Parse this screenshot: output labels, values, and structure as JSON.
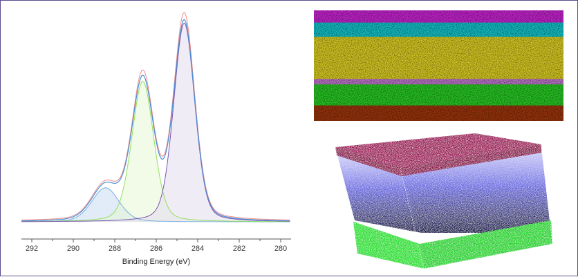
{
  "chart_data": {
    "type": "line",
    "xlabel": "Binding Energy (eV)",
    "xlim": [
      292.5,
      279.5
    ],
    "x_reversed": true,
    "ylim": [
      0,
      1.08
    ],
    "x_ticks": [
      292,
      290,
      288,
      286,
      284,
      282,
      280
    ],
    "y_tick_labels": false,
    "grid": false,
    "legend": "none",
    "baseline": 0.02,
    "components": [
      {
        "center": 288.45,
        "height": 0.17,
        "fwhm": 1.55,
        "color": "#7aaee0",
        "fill": "#c9dcf2"
      },
      {
        "center": 286.65,
        "height": 0.7,
        "fwhm": 1.25,
        "color": "#8fe05a",
        "fill": "#e6f7d6"
      },
      {
        "center": 284.65,
        "height": 0.99,
        "fwhm": 1.2,
        "color": "#7a55b0",
        "fill": "#e4dcef"
      }
    ],
    "envelope_color": "#4a90d6",
    "fit_color": "#f08a86"
  },
  "colors": {
    "frame": "#5b4a8f",
    "axis": "#555555"
  },
  "elemental_map": {
    "layers": [
      {
        "element_color": "#cc2bd6",
        "bg": "#8a1a90",
        "weight": 0.11
      },
      {
        "element_color": "#1fc8cf",
        "bg": "#1a6f78",
        "weight": 0.13
      },
      {
        "element_color": "#e0d22a",
        "bg": "#8f8612",
        "weight": 0.38
      },
      {
        "element_color": "#c47ad2",
        "bg": "#6a3a7a",
        "weight": 0.05
      },
      {
        "element_color": "#2fcf2a",
        "bg": "#166c14",
        "weight": 0.19
      },
      {
        "element_color": "#a03a18",
        "bg": "#4a1010",
        "weight": 0.14
      }
    ]
  },
  "volume_render": {
    "top_color": "#a0185c",
    "middle_color": "#5a5ae0",
    "bottom_color": "#22e02a"
  }
}
